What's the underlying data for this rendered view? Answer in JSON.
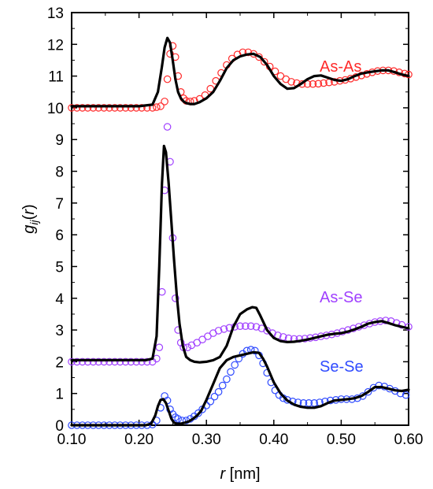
{
  "chart_data": {
    "type": "line",
    "xlabel": "r [nm]",
    "ylabel": "gij(r)",
    "xlim": [
      0.1,
      0.6
    ],
    "ylim": [
      0,
      13
    ],
    "xticks": [
      "0.10",
      "0.20",
      "0.30",
      "0.40",
      "0.50",
      "0.60"
    ],
    "yticks": [
      "0",
      "1",
      "2",
      "3",
      "4",
      "5",
      "6",
      "7",
      "8",
      "9",
      "10",
      "11",
      "12",
      "13"
    ],
    "grid": false,
    "labels": {
      "as_as": "As-As",
      "as_se": "As-Se",
      "se_se": "Se-Se"
    },
    "colors": {
      "as_as": "#ff2a2a",
      "as_se": "#a040ff",
      "se_se": "#2f4bff",
      "model": "#000000"
    },
    "series": [
      {
        "name": "As-As",
        "kind": "markers",
        "x": [
          0.1,
          0.108,
          0.116,
          0.124,
          0.132,
          0.14,
          0.148,
          0.156,
          0.164,
          0.172,
          0.18,
          0.188,
          0.196,
          0.204,
          0.212,
          0.22,
          0.226,
          0.232,
          0.238,
          0.242,
          0.246,
          0.25,
          0.254,
          0.258,
          0.262,
          0.266,
          0.27,
          0.276,
          0.282,
          0.29,
          0.298,
          0.306,
          0.314,
          0.322,
          0.33,
          0.338,
          0.346,
          0.354,
          0.362,
          0.37,
          0.378,
          0.386,
          0.394,
          0.402,
          0.41,
          0.418,
          0.426,
          0.434,
          0.442,
          0.45,
          0.458,
          0.466,
          0.474,
          0.482,
          0.49,
          0.498,
          0.506,
          0.514,
          0.522,
          0.53,
          0.538,
          0.546,
          0.554,
          0.562,
          0.57,
          0.578,
          0.586,
          0.594,
          0.6
        ],
        "y": [
          10.0,
          10.0,
          10.0,
          10.0,
          10.0,
          10.0,
          10.0,
          10.0,
          10.0,
          10.0,
          10.0,
          10.0,
          10.0,
          10.0,
          10.0,
          10.0,
          10.02,
          10.05,
          10.2,
          10.9,
          11.7,
          11.95,
          11.6,
          11.0,
          10.5,
          10.3,
          10.22,
          10.2,
          10.22,
          10.28,
          10.4,
          10.6,
          10.85,
          11.1,
          11.35,
          11.55,
          11.68,
          11.75,
          11.75,
          11.7,
          11.6,
          11.45,
          11.3,
          11.15,
          11.0,
          10.9,
          10.82,
          10.78,
          10.75,
          10.75,
          10.75,
          10.76,
          10.78,
          10.8,
          10.82,
          10.85,
          10.88,
          10.92,
          10.97,
          11.02,
          11.07,
          11.12,
          11.16,
          11.18,
          11.18,
          11.16,
          11.12,
          11.08,
          11.05
        ]
      },
      {
        "name": "As-As model",
        "kind": "line",
        "x": [
          0.1,
          0.2,
          0.22,
          0.228,
          0.234,
          0.238,
          0.242,
          0.246,
          0.25,
          0.254,
          0.258,
          0.262,
          0.266,
          0.27,
          0.276,
          0.282,
          0.29,
          0.3,
          0.31,
          0.32,
          0.33,
          0.34,
          0.35,
          0.36,
          0.37,
          0.38,
          0.39,
          0.4,
          0.41,
          0.42,
          0.43,
          0.44,
          0.45,
          0.46,
          0.47,
          0.48,
          0.49,
          0.5,
          0.51,
          0.52,
          0.53,
          0.54,
          0.55,
          0.56,
          0.57,
          0.58,
          0.59,
          0.6
        ],
        "y": [
          10.05,
          10.05,
          10.1,
          10.5,
          11.3,
          11.9,
          12.2,
          12.05,
          11.5,
          10.9,
          10.5,
          10.3,
          10.2,
          10.15,
          10.12,
          10.12,
          10.18,
          10.3,
          10.5,
          10.85,
          11.25,
          11.5,
          11.62,
          11.68,
          11.7,
          11.6,
          11.35,
          11.0,
          10.75,
          10.6,
          10.62,
          10.75,
          10.9,
          11.0,
          11.02,
          10.95,
          10.88,
          10.85,
          10.9,
          11.0,
          11.08,
          11.12,
          11.15,
          11.18,
          11.18,
          11.12,
          11.05,
          11.0
        ]
      },
      {
        "name": "As-Se",
        "kind": "markers",
        "x": [
          0.1,
          0.108,
          0.116,
          0.124,
          0.132,
          0.14,
          0.148,
          0.156,
          0.164,
          0.172,
          0.18,
          0.188,
          0.196,
          0.204,
          0.212,
          0.22,
          0.226,
          0.23,
          0.234,
          0.238,
          0.242,
          0.246,
          0.25,
          0.254,
          0.258,
          0.262,
          0.266,
          0.272,
          0.278,
          0.286,
          0.294,
          0.302,
          0.31,
          0.318,
          0.326,
          0.334,
          0.342,
          0.35,
          0.358,
          0.366,
          0.374,
          0.382,
          0.39,
          0.398,
          0.406,
          0.414,
          0.422,
          0.43,
          0.438,
          0.446,
          0.454,
          0.462,
          0.47,
          0.478,
          0.486,
          0.494,
          0.502,
          0.51,
          0.518,
          0.526,
          0.534,
          0.542,
          0.55,
          0.558,
          0.566,
          0.574,
          0.582,
          0.59,
          0.6
        ],
        "y": [
          2.0,
          2.0,
          2.0,
          2.0,
          2.0,
          2.0,
          2.0,
          2.0,
          2.0,
          2.0,
          2.0,
          2.0,
          2.0,
          2.0,
          2.0,
          2.0,
          2.1,
          2.45,
          4.2,
          7.4,
          9.4,
          8.3,
          5.9,
          4.0,
          3.0,
          2.6,
          2.45,
          2.45,
          2.52,
          2.6,
          2.7,
          2.8,
          2.9,
          2.98,
          3.03,
          3.07,
          3.1,
          3.12,
          3.12,
          3.12,
          3.1,
          3.05,
          2.98,
          2.9,
          2.83,
          2.78,
          2.74,
          2.72,
          2.72,
          2.73,
          2.75,
          2.77,
          2.8,
          2.83,
          2.86,
          2.9,
          2.95,
          3.0,
          3.05,
          3.1,
          3.15,
          3.2,
          3.25,
          3.28,
          3.3,
          3.28,
          3.22,
          3.16,
          3.1
        ]
      },
      {
        "name": "As-Se model",
        "kind": "line",
        "x": [
          0.1,
          0.21,
          0.22,
          0.226,
          0.23,
          0.234,
          0.237,
          0.24,
          0.244,
          0.248,
          0.252,
          0.256,
          0.26,
          0.265,
          0.27,
          0.276,
          0.282,
          0.29,
          0.3,
          0.31,
          0.32,
          0.33,
          0.34,
          0.35,
          0.36,
          0.368,
          0.374,
          0.38,
          0.39,
          0.4,
          0.41,
          0.42,
          0.43,
          0.44,
          0.45,
          0.46,
          0.47,
          0.48,
          0.49,
          0.5,
          0.51,
          0.52,
          0.53,
          0.54,
          0.55,
          0.56,
          0.57,
          0.58,
          0.59,
          0.6
        ],
        "y": [
          2.05,
          2.05,
          2.1,
          2.8,
          5.0,
          7.6,
          8.8,
          8.6,
          7.6,
          6.4,
          5.2,
          4.1,
          3.2,
          2.5,
          2.15,
          2.05,
          2.0,
          1.98,
          2.0,
          2.05,
          2.15,
          2.5,
          3.1,
          3.5,
          3.65,
          3.72,
          3.7,
          3.45,
          3.0,
          2.75,
          2.65,
          2.62,
          2.63,
          2.66,
          2.7,
          2.75,
          2.8,
          2.85,
          2.88,
          2.9,
          2.95,
          3.02,
          3.1,
          3.2,
          3.25,
          3.28,
          3.22,
          3.15,
          3.1,
          3.05
        ]
      },
      {
        "name": "Se-Se",
        "kind": "markers",
        "x": [
          0.1,
          0.108,
          0.116,
          0.124,
          0.132,
          0.14,
          0.148,
          0.156,
          0.164,
          0.172,
          0.18,
          0.188,
          0.196,
          0.204,
          0.212,
          0.22,
          0.226,
          0.232,
          0.238,
          0.242,
          0.246,
          0.25,
          0.254,
          0.258,
          0.264,
          0.27,
          0.276,
          0.282,
          0.288,
          0.294,
          0.3,
          0.306,
          0.312,
          0.318,
          0.324,
          0.33,
          0.336,
          0.342,
          0.348,
          0.354,
          0.36,
          0.366,
          0.372,
          0.378,
          0.384,
          0.39,
          0.396,
          0.402,
          0.408,
          0.414,
          0.42,
          0.428,
          0.436,
          0.444,
          0.452,
          0.46,
          0.468,
          0.476,
          0.484,
          0.492,
          0.5,
          0.508,
          0.516,
          0.524,
          0.532,
          0.54,
          0.548,
          0.556,
          0.564,
          0.572,
          0.58,
          0.588,
          0.596
        ],
        "y": [
          0.0,
          0.0,
          0.0,
          0.0,
          0.0,
          0.0,
          0.0,
          0.0,
          0.0,
          0.0,
          0.0,
          0.0,
          0.0,
          0.0,
          0.0,
          0.02,
          0.15,
          0.55,
          0.92,
          0.78,
          0.5,
          0.35,
          0.25,
          0.2,
          0.15,
          0.15,
          0.2,
          0.28,
          0.38,
          0.5,
          0.62,
          0.75,
          0.9,
          1.05,
          1.25,
          1.45,
          1.68,
          1.9,
          2.1,
          2.25,
          2.35,
          2.38,
          2.35,
          2.2,
          1.95,
          1.65,
          1.35,
          1.1,
          0.95,
          0.85,
          0.8,
          0.75,
          0.72,
          0.7,
          0.7,
          0.7,
          0.72,
          0.75,
          0.78,
          0.8,
          0.82,
          0.82,
          0.82,
          0.85,
          0.92,
          1.05,
          1.18,
          1.25,
          1.22,
          1.15,
          1.08,
          1.0,
          0.95
        ]
      },
      {
        "name": "Se-Se model",
        "kind": "line",
        "x": [
          0.1,
          0.21,
          0.218,
          0.224,
          0.228,
          0.232,
          0.236,
          0.24,
          0.244,
          0.248,
          0.252,
          0.256,
          0.262,
          0.268,
          0.274,
          0.28,
          0.286,
          0.292,
          0.3,
          0.31,
          0.32,
          0.33,
          0.34,
          0.35,
          0.36,
          0.37,
          0.378,
          0.384,
          0.39,
          0.4,
          0.41,
          0.42,
          0.43,
          0.44,
          0.45,
          0.46,
          0.47,
          0.48,
          0.49,
          0.5,
          0.51,
          0.52,
          0.53,
          0.54,
          0.55,
          0.56,
          0.57,
          0.58,
          0.59,
          0.6
        ],
        "y": [
          0.0,
          0.0,
          0.05,
          0.3,
          0.6,
          0.8,
          0.82,
          0.7,
          0.45,
          0.2,
          0.08,
          0.05,
          0.05,
          0.08,
          0.12,
          0.2,
          0.3,
          0.45,
          0.8,
          1.3,
          1.8,
          2.05,
          2.15,
          2.2,
          2.25,
          2.3,
          2.28,
          2.1,
          1.85,
          1.35,
          1.0,
          0.78,
          0.65,
          0.58,
          0.55,
          0.55,
          0.6,
          0.7,
          0.78,
          0.8,
          0.82,
          0.85,
          0.92,
          1.05,
          1.2,
          1.2,
          1.15,
          1.1,
          1.08,
          1.12
        ]
      }
    ]
  }
}
